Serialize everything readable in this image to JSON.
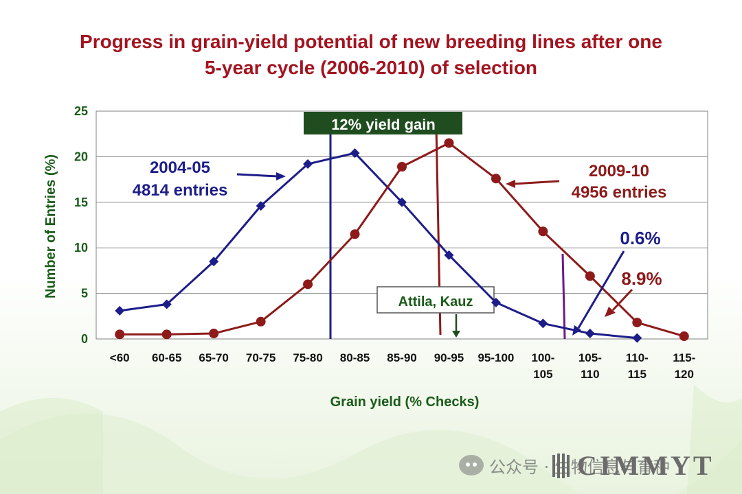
{
  "title": {
    "line1": "Progress in grain-yield potential of new breeding lines after one",
    "line2": "5-year cycle (2006-2010) of selection"
  },
  "watermark": "公众号 · 生物信息与育种",
  "logo": "CIMMYT",
  "colors": {
    "title": "#a31420",
    "axis_text": "#1a5c1a",
    "series_2004": "#1d1d8a",
    "series_2009": "#8e1a1a",
    "gain_box": "#1f4d1f",
    "purple_line": "#6a1a8a"
  },
  "chart_data": {
    "type": "line",
    "categories": [
      "<60",
      "60-65",
      "65-70",
      "70-75",
      "75-80",
      "80-85",
      "85-90",
      "90-95",
      "95-100",
      "100-105",
      "105-110",
      "110-115",
      "115-120"
    ],
    "category_label_lines": [
      [
        "<60"
      ],
      [
        "60-65"
      ],
      [
        "65-70"
      ],
      [
        "70-75"
      ],
      [
        "75-80"
      ],
      [
        "80-85"
      ],
      [
        "85-90"
      ],
      [
        "90-95"
      ],
      [
        "95-100"
      ],
      [
        "100-",
        "105"
      ],
      [
        "105-",
        "110"
      ],
      [
        "110-",
        "115"
      ],
      [
        "115-",
        "120"
      ]
    ],
    "series": [
      {
        "name": "2004-05",
        "marker": "diamond",
        "color": "#1d1d8a",
        "values": [
          3.1,
          3.8,
          8.5,
          14.6,
          19.2,
          20.4,
          15.0,
          9.2,
          4.0,
          1.7,
          0.6,
          0.1,
          null
        ]
      },
      {
        "name": "2009-10",
        "marker": "circle",
        "color": "#8e1a1a",
        "values": [
          0.5,
          0.5,
          0.6,
          1.9,
          6.0,
          11.5,
          18.9,
          21.5,
          17.6,
          11.8,
          6.9,
          1.8,
          0.3
        ]
      }
    ],
    "xlabel": "Grain yield (% Checks)",
    "ylabel": "Number of Entries (%)",
    "ylim": [
      0,
      25
    ],
    "yticks": [
      0,
      5,
      10,
      15,
      20,
      25
    ],
    "grid": "horizontal",
    "annotations": {
      "series1_label": [
        "2004-05",
        "4814 entries"
      ],
      "series2_label": [
        "2009-10",
        "4956 entries"
      ],
      "gain": "12% yield gain",
      "checks": "Attila, Kauz",
      "pct_2004": "0.6%",
      "pct_2009": "8.9%"
    }
  }
}
